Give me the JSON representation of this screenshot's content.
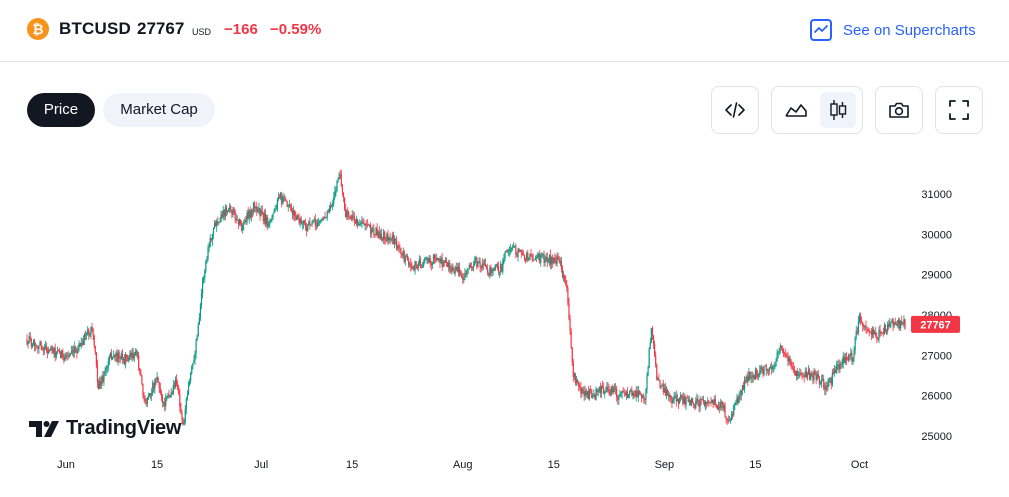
{
  "header": {
    "coin_glyph": "₿",
    "symbol": "BTCUSD",
    "price": "27767",
    "currency": "USD",
    "change": "−166",
    "change_pct": "−0.59%",
    "link_label": "See on Supercharts"
  },
  "tabs": [
    {
      "label": "Price",
      "active": true
    },
    {
      "label": "Market Cap",
      "active": false
    }
  ],
  "toolbar": {
    "embed_icon": "code-icon",
    "area_icon": "area-chart-icon",
    "candle_icon": "candlestick-icon",
    "snapshot_icon": "camera-icon",
    "fullscreen_icon": "fullscreen-icon"
  },
  "branding": {
    "logo_text": "TradingView"
  },
  "colors": {
    "up": "#089981",
    "down": "#f23645",
    "accent": "#2962ff"
  },
  "chart_data": {
    "type": "candlestick",
    "x_tick_labels": [
      "Jun",
      "15",
      "Jul",
      "15",
      "Aug",
      "15",
      "Sep",
      "15",
      "Oct"
    ],
    "y_tick_labels": [
      "25000",
      "26000",
      "27000",
      "28000",
      "29000",
      "30000",
      "31000"
    ],
    "ylim": [
      24750,
      31900
    ],
    "last_price_label": "27767",
    "last_price": 27767,
    "xlim": [
      "2023-05-26",
      "2023-10-08"
    ],
    "close_path": [
      [
        "2023-05-26",
        27400
      ],
      [
        "2023-05-31",
        27000
      ],
      [
        "2023-06-02",
        27000
      ],
      [
        "2023-06-04",
        27500
      ],
      [
        "2023-06-05",
        27700
      ],
      [
        "2023-06-06",
        26200
      ],
      [
        "2023-06-08",
        27000
      ],
      [
        "2023-06-10",
        26900
      ],
      [
        "2023-06-12",
        27000
      ],
      [
        "2023-06-13",
        25800
      ],
      [
        "2023-06-15",
        26400
      ],
      [
        "2023-06-16",
        25800
      ],
      [
        "2023-06-17",
        26000
      ],
      [
        "2023-06-18",
        26400
      ],
      [
        "2023-06-19",
        25200
      ],
      [
        "2023-06-20",
        26400
      ],
      [
        "2023-06-21",
        27300
      ],
      [
        "2023-06-22",
        28800
      ],
      [
        "2023-06-23",
        29800
      ],
      [
        "2023-06-24",
        30300
      ],
      [
        "2023-06-26",
        30700
      ],
      [
        "2023-06-28",
        30200
      ],
      [
        "2023-06-30",
        30700
      ],
      [
        "2023-07-02",
        30300
      ],
      [
        "2023-07-04",
        30900
      ],
      [
        "2023-07-06",
        30500
      ],
      [
        "2023-07-08",
        30200
      ],
      [
        "2023-07-10",
        30300
      ],
      [
        "2023-07-12",
        30700
      ],
      [
        "2023-07-13",
        31600
      ],
      [
        "2023-07-14",
        30500
      ],
      [
        "2023-07-17",
        30200
      ],
      [
        "2023-07-19",
        30000
      ],
      [
        "2023-07-21",
        29900
      ],
      [
        "2023-07-24",
        29200
      ],
      [
        "2023-07-26",
        29300
      ],
      [
        "2023-07-28",
        29400
      ],
      [
        "2023-07-30",
        29200
      ],
      [
        "2023-08-01",
        29000
      ],
      [
        "2023-08-03",
        29300
      ],
      [
        "2023-08-05",
        29100
      ],
      [
        "2023-08-07",
        29200
      ],
      [
        "2023-08-08",
        29700
      ],
      [
        "2023-08-10",
        29500
      ],
      [
        "2023-08-12",
        29400
      ],
      [
        "2023-08-14",
        29400
      ],
      [
        "2023-08-16",
        29300
      ],
      [
        "2023-08-17",
        28600
      ],
      [
        "2023-08-18",
        26500
      ],
      [
        "2023-08-19",
        26100
      ],
      [
        "2023-08-21",
        26000
      ],
      [
        "2023-08-23",
        26200
      ],
      [
        "2023-08-25",
        26000
      ],
      [
        "2023-08-27",
        26100
      ],
      [
        "2023-08-29",
        26000
      ],
      [
        "2023-08-30",
        27600
      ],
      [
        "2023-08-31",
        26300
      ],
      [
        "2023-09-02",
        25900
      ],
      [
        "2023-09-04",
        25900
      ],
      [
        "2023-09-06",
        25800
      ],
      [
        "2023-09-08",
        25900
      ],
      [
        "2023-09-10",
        25700
      ],
      [
        "2023-09-11",
        25300
      ],
      [
        "2023-09-12",
        25800
      ],
      [
        "2023-09-14",
        26500
      ],
      [
        "2023-09-16",
        26600
      ],
      [
        "2023-09-18",
        26800
      ],
      [
        "2023-09-19",
        27200
      ],
      [
        "2023-09-21",
        26600
      ],
      [
        "2023-09-24",
        26500
      ],
      [
        "2023-09-26",
        26200
      ],
      [
        "2023-09-28",
        26800
      ],
      [
        "2023-09-30",
        27000
      ],
      [
        "2023-10-01",
        28000
      ],
      [
        "2023-10-02",
        27600
      ],
      [
        "2023-10-04",
        27500
      ],
      [
        "2023-10-06",
        27800
      ],
      [
        "2023-10-08",
        27767
      ]
    ]
  }
}
